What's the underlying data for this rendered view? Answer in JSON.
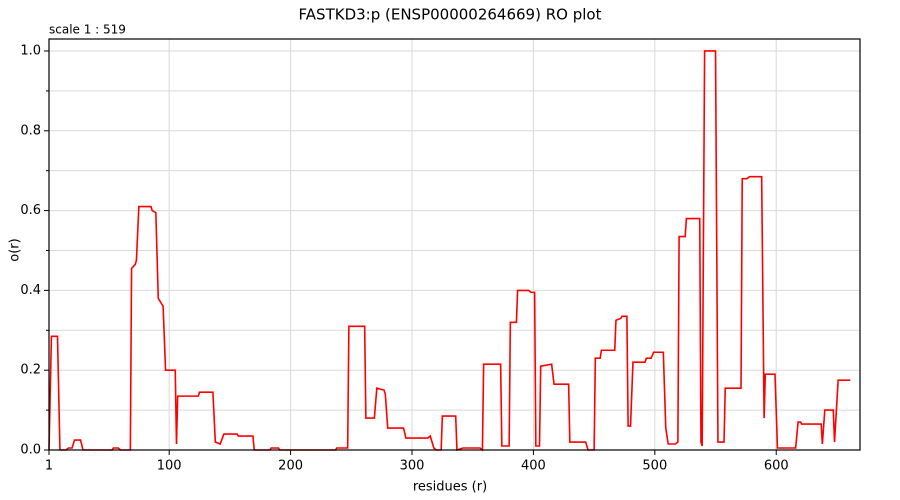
{
  "chart_data": {
    "type": "line",
    "title": "FASTKD3:p (ENSP00000264669) RO plot",
    "annotation": "scale 1 : 519",
    "x_label": "residues (r)",
    "y_label": "o(r)",
    "color": "#ff0000",
    "xlim": [
      1,
      669
    ],
    "ylim": [
      0,
      1.03
    ],
    "xticks": [
      1,
      100,
      200,
      300,
      400,
      500,
      600
    ],
    "yticks": [
      {
        "value": 0,
        "label": "0.0"
      },
      {
        "value": 0.2,
        "label": "0.2"
      },
      {
        "value": 0.4,
        "label": "0.4"
      },
      {
        "value": 0.6,
        "label": "0.6"
      },
      {
        "value": 0.8,
        "label": "0.8"
      },
      {
        "value": 1,
        "label": "1.0"
      }
    ],
    "yminorticks": [
      0.1,
      0.3,
      0.5,
      0.7,
      0.9
    ],
    "grid": true,
    "x": [
      1,
      3,
      8,
      10,
      15,
      17,
      20,
      22,
      27,
      29,
      53,
      54,
      58,
      60,
      68,
      69,
      72,
      73,
      75,
      85,
      86,
      89,
      91,
      95,
      97,
      105,
      106,
      107,
      124,
      125,
      136,
      138,
      142,
      145,
      156,
      157,
      169,
      170,
      183,
      184,
      190,
      191,
      237,
      238,
      247,
      248,
      261,
      262,
      269,
      271,
      277,
      278,
      280,
      293,
      295,
      313,
      315,
      318,
      320,
      324,
      325,
      336,
      337,
      342,
      356,
      358,
      359,
      373,
      374,
      380,
      381,
      386,
      387,
      396,
      398,
      401,
      402,
      405,
      406,
      415,
      417,
      429,
      430,
      443,
      445,
      450,
      451,
      455,
      456,
      467,
      468,
      472,
      473,
      477,
      478,
      480,
      482,
      492,
      493,
      497,
      499,
      507,
      509,
      511,
      517,
      519,
      520,
      525,
      526,
      537,
      538,
      539,
      541,
      550,
      552,
      557,
      558,
      571,
      572,
      576,
      578,
      588,
      590,
      591,
      599,
      601,
      616,
      618,
      620,
      621,
      637,
      638,
      640,
      647,
      648,
      651,
      661
    ],
    "values": [
      0,
      0.285,
      0.285,
      0,
      0,
      0.005,
      0.005,
      0.025,
      0.025,
      0,
      0,
      0.005,
      0.005,
      0,
      0,
      0.455,
      0.465,
      0.475,
      0.61,
      0.61,
      0.6,
      0.595,
      0.38,
      0.36,
      0.2,
      0.2,
      0.015,
      0.135,
      0.135,
      0.145,
      0.145,
      0.02,
      0.015,
      0.04,
      0.04,
      0.035,
      0.035,
      0,
      0,
      0.005,
      0.005,
      0,
      0,
      0.005,
      0.005,
      0.31,
      0.31,
      0.08,
      0.08,
      0.155,
      0.15,
      0.14,
      0.055,
      0.055,
      0.03,
      0.03,
      0.035,
      0.005,
      0,
      0,
      0.085,
      0.085,
      0,
      0.005,
      0.005,
      0,
      0.215,
      0.215,
      0.01,
      0.01,
      0.32,
      0.32,
      0.4,
      0.4,
      0.395,
      0.395,
      0.01,
      0.01,
      0.21,
      0.215,
      0.165,
      0.165,
      0.02,
      0.02,
      0,
      0,
      0.23,
      0.23,
      0.25,
      0.25,
      0.325,
      0.33,
      0.335,
      0.335,
      0.06,
      0.06,
      0.22,
      0.22,
      0.23,
      0.23,
      0.245,
      0.245,
      0.055,
      0.015,
      0.015,
      0.02,
      0.535,
      0.535,
      0.58,
      0.58,
      0.02,
      0.01,
      1,
      1,
      0.02,
      0.02,
      0.155,
      0.155,
      0.68,
      0.68,
      0.685,
      0.685,
      0.08,
      0.19,
      0.19,
      0.005,
      0.005,
      0.07,
      0.07,
      0.065,
      0.065,
      0.015,
      0.1,
      0.1,
      0.02,
      0.175,
      0.175
    ]
  }
}
